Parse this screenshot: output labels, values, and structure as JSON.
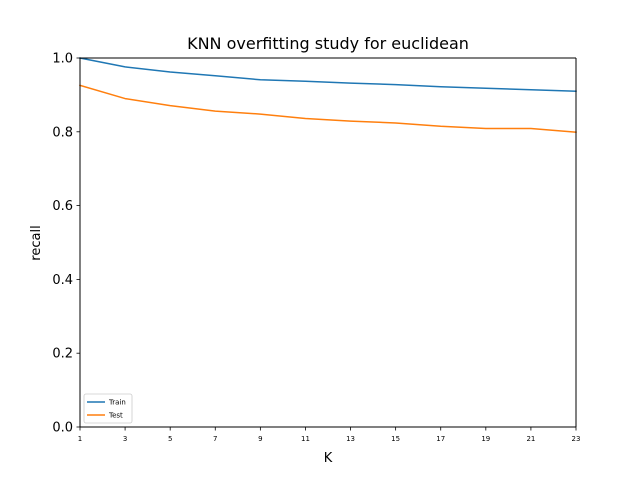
{
  "chart_data": {
    "type": "line",
    "title": "KNN overfitting study for euclidean",
    "xlabel": "K",
    "ylabel": "recall",
    "x": [
      1,
      3,
      5,
      7,
      9,
      11,
      13,
      15,
      17,
      19,
      21,
      23
    ],
    "xticks": [
      "1",
      "3",
      "5",
      "7",
      "9",
      "11",
      "13",
      "15",
      "17",
      "19",
      "21",
      "23"
    ],
    "yticks": [
      "0.0",
      "0.2",
      "0.4",
      "0.6",
      "0.8",
      "1.0"
    ],
    "xlim": [
      1,
      23
    ],
    "ylim": [
      0.0,
      1.0
    ],
    "grid": false,
    "legend_position": "lower-left",
    "series": [
      {
        "name": "Train",
        "color": "#1f77b4",
        "values": [
          1.0,
          0.976,
          0.962,
          0.952,
          0.941,
          0.937,
          0.932,
          0.928,
          0.922,
          0.918,
          0.914,
          0.91
        ]
      },
      {
        "name": "Test",
        "color": "#ff7f0e",
        "values": [
          0.926,
          0.89,
          0.871,
          0.856,
          0.848,
          0.836,
          0.829,
          0.824,
          0.815,
          0.809,
          0.809,
          0.799
        ]
      }
    ]
  }
}
